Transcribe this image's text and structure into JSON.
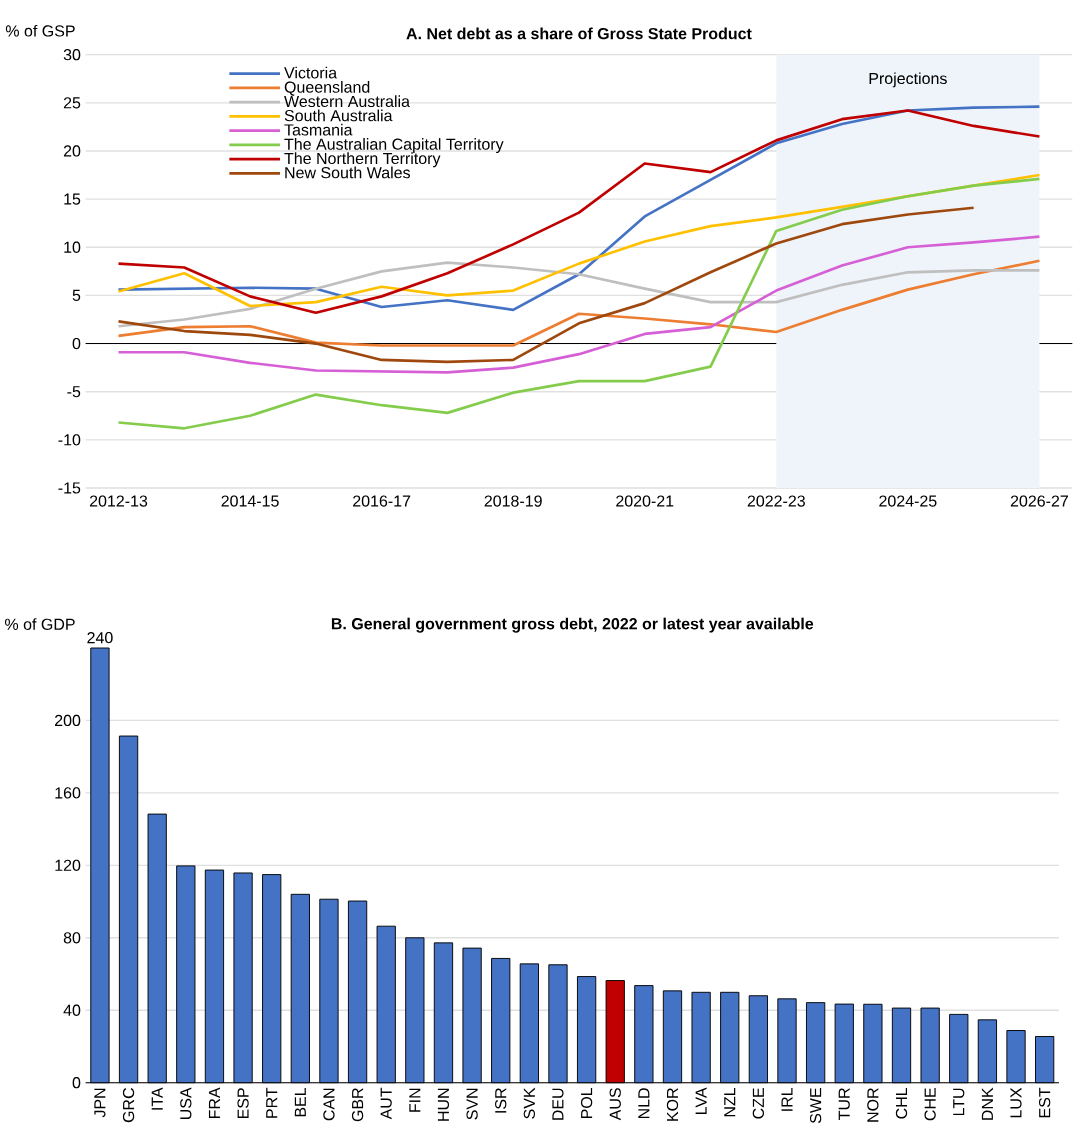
{
  "chart_data": [
    {
      "type": "line",
      "title": "A. Net debt as a share of Gross State Product",
      "ylabel": "% of GSP",
      "categories": [
        "2012-13",
        null,
        "2014-15",
        null,
        "2016-17",
        null,
        "2018-19",
        null,
        "2020-21",
        null,
        "2022-23",
        null,
        "2024-25",
        null,
        "2026-27"
      ],
      "series": [
        {
          "name": "Victoria",
          "color": "#4472c4",
          "values": [
            5.6,
            5.7,
            5.8,
            5.7,
            3.8,
            4.5,
            3.5,
            7.2,
            13.2,
            17.0,
            20.8,
            22.8,
            24.2,
            24.5,
            24.6
          ]
        },
        {
          "name": "Queensland",
          "color": "#ed7d31",
          "values": [
            0.8,
            1.7,
            1.8,
            0.1,
            -0.2,
            -0.2,
            -0.2,
            3.1,
            2.6,
            2.0,
            1.2,
            3.5,
            5.6,
            7.2,
            8.6
          ]
        },
        {
          "name": "Western Australia",
          "color": "#bfbfbf",
          "values": [
            1.8,
            2.5,
            3.6,
            5.7,
            7.5,
            8.4,
            7.9,
            7.2,
            5.7,
            4.3,
            4.3,
            6.1,
            7.4,
            7.6,
            7.6
          ]
        },
        {
          "name": "South Australia",
          "color": "#ffc000",
          "values": [
            5.4,
            7.3,
            3.9,
            4.3,
            5.9,
            5.0,
            5.5,
            8.3,
            10.6,
            12.2,
            13.1,
            14.2,
            15.3,
            16.4,
            17.5
          ]
        },
        {
          "name": "Tasmania",
          "color": "#d65fd6",
          "values": [
            -0.9,
            -0.9,
            -2.0,
            -2.8,
            -2.9,
            -3.0,
            -2.5,
            -1.1,
            1.0,
            1.7,
            5.5,
            8.1,
            10.0,
            10.5,
            11.1
          ]
        },
        {
          "name": "The Australian Capital Territory",
          "color": "#84cc4c",
          "values": [
            -8.2,
            -8.8,
            -7.5,
            -5.3,
            -6.4,
            -7.2,
            -5.1,
            -3.9,
            -3.9,
            -2.4,
            11.7,
            13.9,
            15.3,
            16.4,
            17.1
          ]
        },
        {
          "name": "The Northern Territory",
          "color": "#c00000",
          "values": [
            8.3,
            7.9,
            4.9,
            3.2,
            4.9,
            7.3,
            10.3,
            13.6,
            18.7,
            17.8,
            21.1,
            23.3,
            24.2,
            22.6,
            21.5
          ]
        },
        {
          "name": "New South Wales",
          "color": "#9e480e",
          "values": [
            2.3,
            1.3,
            0.9,
            0.0,
            -1.7,
            -1.9,
            -1.7,
            2.1,
            4.2,
            7.4,
            10.4,
            12.4,
            13.4,
            14.1,
            null
          ]
        }
      ],
      "ylim": [
        -15,
        30
      ],
      "yticks": [
        -15,
        -10,
        -5,
        0,
        5,
        10,
        15,
        20,
        25,
        30
      ],
      "grid": "y",
      "legend": "top left",
      "bands": [
        {
          "axis": "x",
          "from": "2022-23",
          "to": "2026-27",
          "label": "Projections",
          "color": "#eef4fa"
        }
      ]
    },
    {
      "type": "bar",
      "title": "B. General government gross debt, 2022 or latest year available",
      "ylabel": "% of GDP",
      "categories": [
        "JPN",
        "GRC",
        "ITA",
        "USA",
        "FRA",
        "ESP",
        "PRT",
        "BEL",
        "CAN",
        "GBR",
        "AUT",
        "FIN",
        "HUN",
        "SVN",
        "ISR",
        "SVK",
        "DEU",
        "POL",
        "AUS",
        "NLD",
        "KOR",
        "LVA",
        "NZL",
        "CZE",
        "IRL",
        "SWE",
        "TUR",
        "NOR",
        "CHL",
        "CHE",
        "LTU",
        "DNK",
        "LUX",
        "EST"
      ],
      "values": [
        240,
        191.4,
        148.3,
        119.7,
        117.4,
        115.8,
        114.9,
        104.0,
        101.3,
        100.3,
        86.4,
        80.0,
        77.2,
        74.3,
        68.6,
        65.6,
        65.1,
        58.6,
        56.4,
        53.6,
        50.7,
        49.9,
        49.9,
        48.0,
        46.3,
        44.2,
        43.4,
        43.3,
        41.2,
        41.2,
        37.7,
        34.7,
        28.8,
        25.5
      ],
      "value_labels": [
        "240",
        null,
        null,
        null,
        null,
        null,
        null,
        null,
        null,
        null,
        null,
        null,
        null,
        null,
        null,
        null,
        null,
        null,
        null,
        null,
        null,
        null,
        null,
        null,
        null,
        null,
        null,
        null,
        null,
        null,
        null,
        null,
        null,
        null
      ],
      "colors": [
        "#4472c4",
        "#4472c4",
        "#4472c4",
        "#4472c4",
        "#4472c4",
        "#4472c4",
        "#4472c4",
        "#4472c4",
        "#4472c4",
        "#4472c4",
        "#4472c4",
        "#4472c4",
        "#4472c4",
        "#4472c4",
        "#4472c4",
        "#4472c4",
        "#4472c4",
        "#4472c4",
        "#c00000",
        "#4472c4",
        "#4472c4",
        "#4472c4",
        "#4472c4",
        "#4472c4",
        "#4472c4",
        "#4472c4",
        "#4472c4",
        "#4472c4",
        "#4472c4",
        "#4472c4",
        "#4472c4",
        "#4472c4",
        "#4472c4",
        "#4472c4"
      ],
      "ylim": [
        0,
        240
      ],
      "yticks": [
        0,
        40,
        80,
        120,
        160,
        200
      ],
      "grid": "y"
    }
  ]
}
